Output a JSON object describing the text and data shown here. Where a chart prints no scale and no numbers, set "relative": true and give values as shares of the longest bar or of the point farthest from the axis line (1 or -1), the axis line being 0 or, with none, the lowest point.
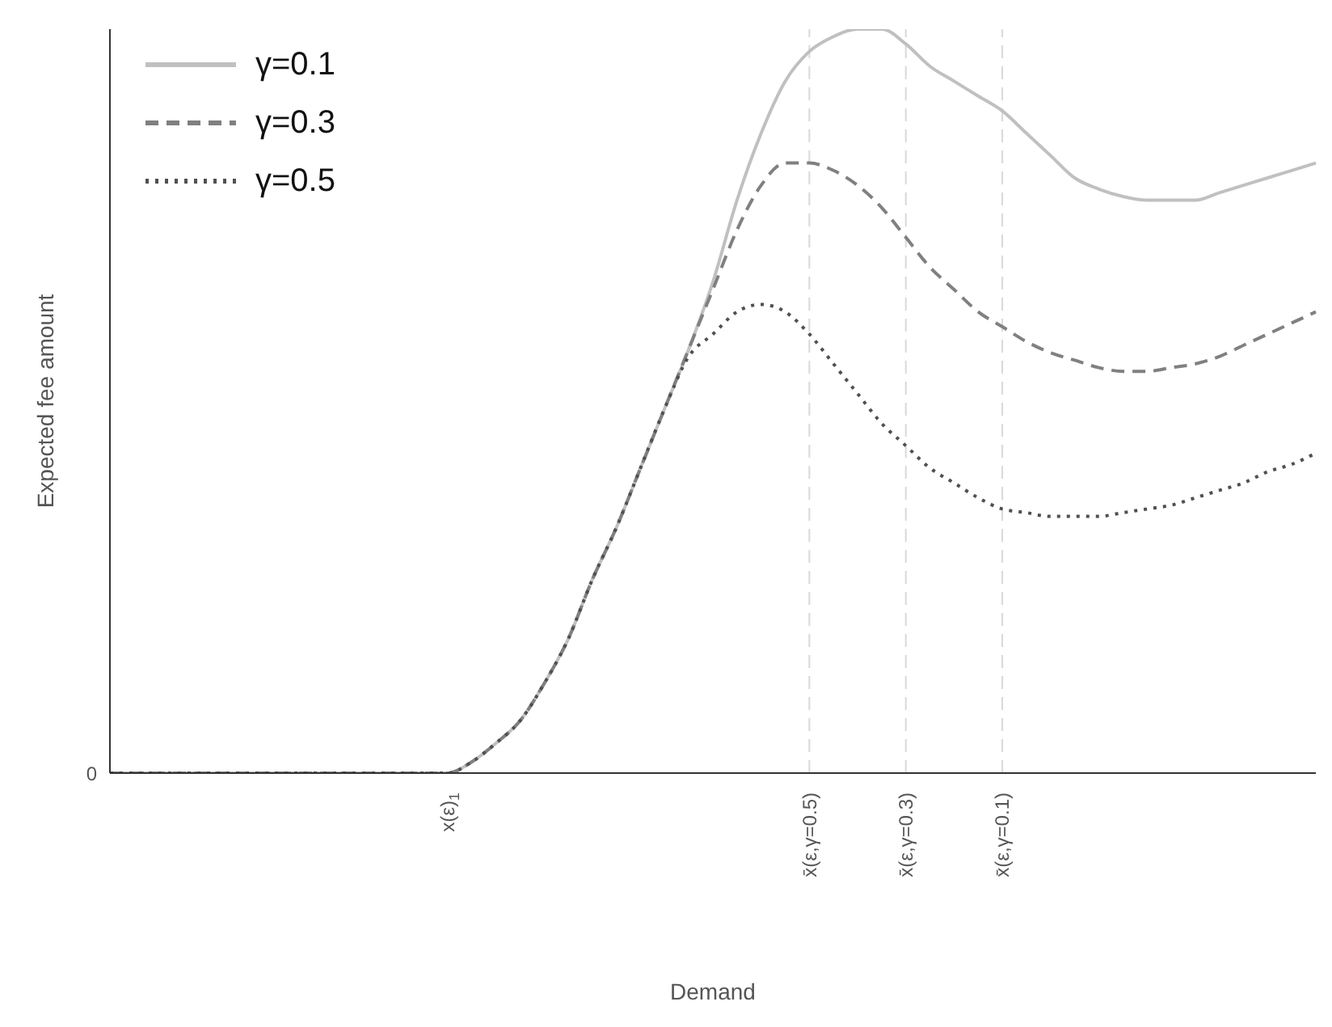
{
  "chart_data": {
    "type": "line",
    "xlabel": "Demand",
    "ylabel": "Expected fee amount",
    "relative": true,
    "annotations": [
      "0"
    ],
    "grid": false,
    "legend": "top left",
    "marker": "none",
    "categories": [
      null,
      null,
      null,
      null,
      null,
      null,
      null,
      null,
      null,
      null,
      null,
      null,
      null,
      null,
      "x(ε)$_{1}$",
      null,
      null,
      null,
      null,
      null,
      null,
      null,
      null,
      null,
      null,
      null,
      null,
      null,
      null,
      "x̄(ε,γ=0.5)",
      null,
      null,
      null,
      "x̄(ε,γ=0.3)",
      null,
      null,
      null,
      "x̄(ε,γ=0.1)",
      null,
      null,
      null,
      null,
      null,
      null,
      null,
      null,
      null,
      null,
      null,
      null,
      null
    ],
    "ref_lines": [
      {
        "axis": "x",
        "value": "x̄(ε,γ=0.5)",
        "color": "#d9d9d9",
        "line_style": "dashed"
      },
      {
        "axis": "x",
        "value": "x̄(ε,γ=0.3)",
        "color": "#d9d9d9",
        "line_style": "dashed"
      },
      {
        "axis": "x",
        "value": "x̄(ε,γ=0.1)",
        "color": "#d9d9d9",
        "line_style": "dashed"
      }
    ],
    "series": [
      {
        "name": "γ=0.1",
        "color": "#c0c0c0",
        "line_style": "solid",
        "values": [
          0,
          0,
          0,
          0,
          0,
          0,
          0,
          0,
          0,
          0,
          0,
          0,
          0,
          0,
          0,
          0.015,
          0.04,
          0.07,
          0.12,
          0.18,
          0.26,
          0.33,
          0.41,
          0.49,
          0.57,
          0.66,
          0.77,
          0.86,
          0.93,
          0.97,
          0.99,
          1,
          1,
          0.98,
          0.95,
          0.93,
          0.91,
          0.89,
          0.86,
          0.83,
          0.8,
          0.785,
          0.775,
          0.77,
          0.77,
          0.77,
          0.78,
          0.79,
          0.8,
          0.81,
          0.82
        ]
      },
      {
        "name": "γ=0.3",
        "color": "#808080",
        "line_style": "dashed",
        "values": [
          0,
          0,
          0,
          0,
          0,
          0,
          0,
          0,
          0,
          0,
          0,
          0,
          0,
          0,
          0,
          0.015,
          0.04,
          0.07,
          0.12,
          0.18,
          0.26,
          0.33,
          0.41,
          0.49,
          0.57,
          0.65,
          0.73,
          0.79,
          0.82,
          0.82,
          0.81,
          0.79,
          0.76,
          0.72,
          0.68,
          0.65,
          0.62,
          0.6,
          0.58,
          0.565,
          0.555,
          0.545,
          0.54,
          0.54,
          0.545,
          0.55,
          0.56,
          0.575,
          0.59,
          0.605,
          0.62
        ]
      },
      {
        "name": "γ=0.5",
        "color": "#505050",
        "line_style": "dotted",
        "values": [
          0,
          0,
          0,
          0,
          0,
          0,
          0,
          0,
          0,
          0,
          0,
          0,
          0,
          0,
          0,
          0.015,
          0.04,
          0.07,
          0.12,
          0.18,
          0.26,
          0.33,
          0.41,
          0.49,
          0.56,
          0.59,
          0.62,
          0.63,
          0.62,
          0.59,
          0.55,
          0.51,
          0.47,
          0.44,
          0.41,
          0.39,
          0.37,
          0.355,
          0.35,
          0.345,
          0.345,
          0.345,
          0.35,
          0.355,
          0.36,
          0.37,
          0.38,
          0.39,
          0.405,
          0.415,
          0.43
        ]
      }
    ]
  }
}
